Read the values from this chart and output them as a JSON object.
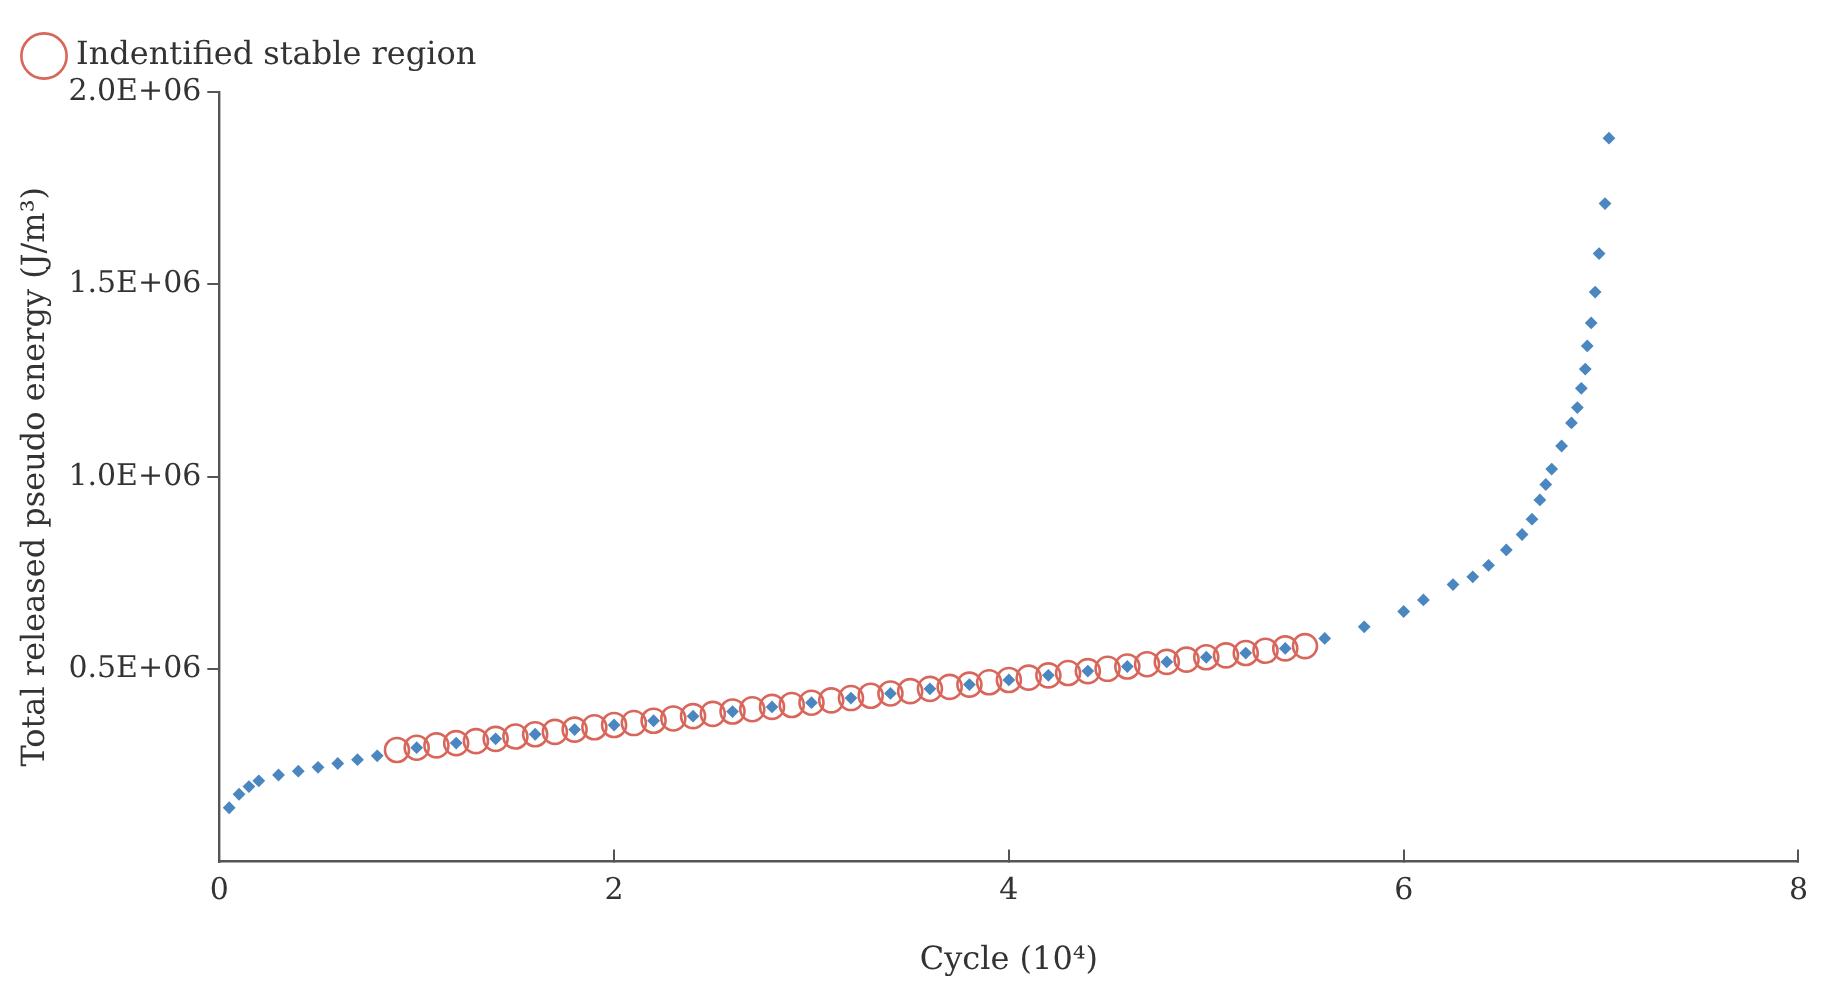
{
  "chart_data": {
    "type": "scatter",
    "xlabel": "Cycle (10⁴)",
    "ylabel": "Total released pseudo energy (J/m³)",
    "xlim": [
      0,
      8
    ],
    "xticks": [
      0,
      2,
      4,
      6,
      8
    ],
    "ylim": [
      0,
      2000000
    ],
    "yticks": [
      {
        "value": 500000,
        "label": "0.5E+06"
      },
      {
        "value": 1000000,
        "label": "1.0E+06"
      },
      {
        "value": 1500000,
        "label": "1.5E+06"
      },
      {
        "value": 2000000,
        "label": "2.0E+06"
      }
    ],
    "grid": false,
    "legend": "top left",
    "series": [
      {
        "color": "#4a86c0",
        "marker": "diamond",
        "x": [
          0.05,
          0.1,
          0.15,
          0.2,
          0.3,
          0.4,
          0.5,
          0.6,
          0.7,
          0.8,
          1.0,
          1.2,
          1.4,
          1.6,
          1.8,
          2.0,
          2.2,
          2.4,
          2.6,
          2.8,
          3.0,
          3.2,
          3.4,
          3.6,
          3.8,
          4.0,
          4.2,
          4.4,
          4.6,
          4.8,
          5.0,
          5.2,
          5.4,
          5.6,
          5.8,
          6.0,
          6.1,
          6.25,
          6.35,
          6.43,
          6.52,
          6.6,
          6.65,
          6.69,
          6.72,
          6.75,
          6.8,
          6.85,
          6.88,
          6.9,
          6.92,
          6.93,
          6.95,
          6.97,
          6.99,
          7.02,
          7.04
        ],
        "values": [
          140000,
          175000,
          195000,
          210000,
          225000,
          235000,
          245000,
          255000,
          265000,
          275000,
          296000,
          308000,
          319000,
          331000,
          343000,
          355000,
          366000,
          378000,
          390000,
          402000,
          413000,
          425000,
          437000,
          449000,
          460000,
          472000,
          484000,
          495000,
          507000,
          519000,
          531000,
          542000,
          554000,
          580000,
          610000,
          650000,
          680000,
          720000,
          740000,
          770000,
          810000,
          850000,
          890000,
          940000,
          980000,
          1020000,
          1080000,
          1140000,
          1180000,
          1230000,
          1280000,
          1340000,
          1400000,
          1480000,
          1580000,
          1710000,
          1880000
        ]
      },
      {
        "name": "Indentified stable region",
        "color": "#d9665a",
        "marker": "circle",
        "x": [
          0.9,
          1.0,
          1.1,
          1.2,
          1.3,
          1.4,
          1.5,
          1.6,
          1.7,
          1.8,
          1.9,
          2.0,
          2.1,
          2.2,
          2.3,
          2.4,
          2.5,
          2.6,
          2.7,
          2.8,
          2.9,
          3.0,
          3.1,
          3.2,
          3.3,
          3.4,
          3.5,
          3.6,
          3.7,
          3.8,
          3.9,
          4.0,
          4.1,
          4.2,
          4.3,
          4.4,
          4.5,
          4.6,
          4.7,
          4.8,
          4.9,
          5.0,
          5.1,
          5.2,
          5.3,
          5.4,
          5.5
        ],
        "values": [
          290000,
          296000,
          302000,
          308000,
          313000,
          319000,
          325000,
          331000,
          337000,
          343000,
          349000,
          355000,
          360000,
          366000,
          372000,
          378000,
          384000,
          390000,
          396000,
          402000,
          407000,
          413000,
          419000,
          425000,
          431000,
          437000,
          443000,
          449000,
          454000,
          460000,
          466000,
          472000,
          478000,
          484000,
          490000,
          495000,
          501000,
          507000,
          513000,
          519000,
          525000,
          531000,
          536000,
          542000,
          548000,
          554000,
          560000
        ]
      }
    ]
  }
}
